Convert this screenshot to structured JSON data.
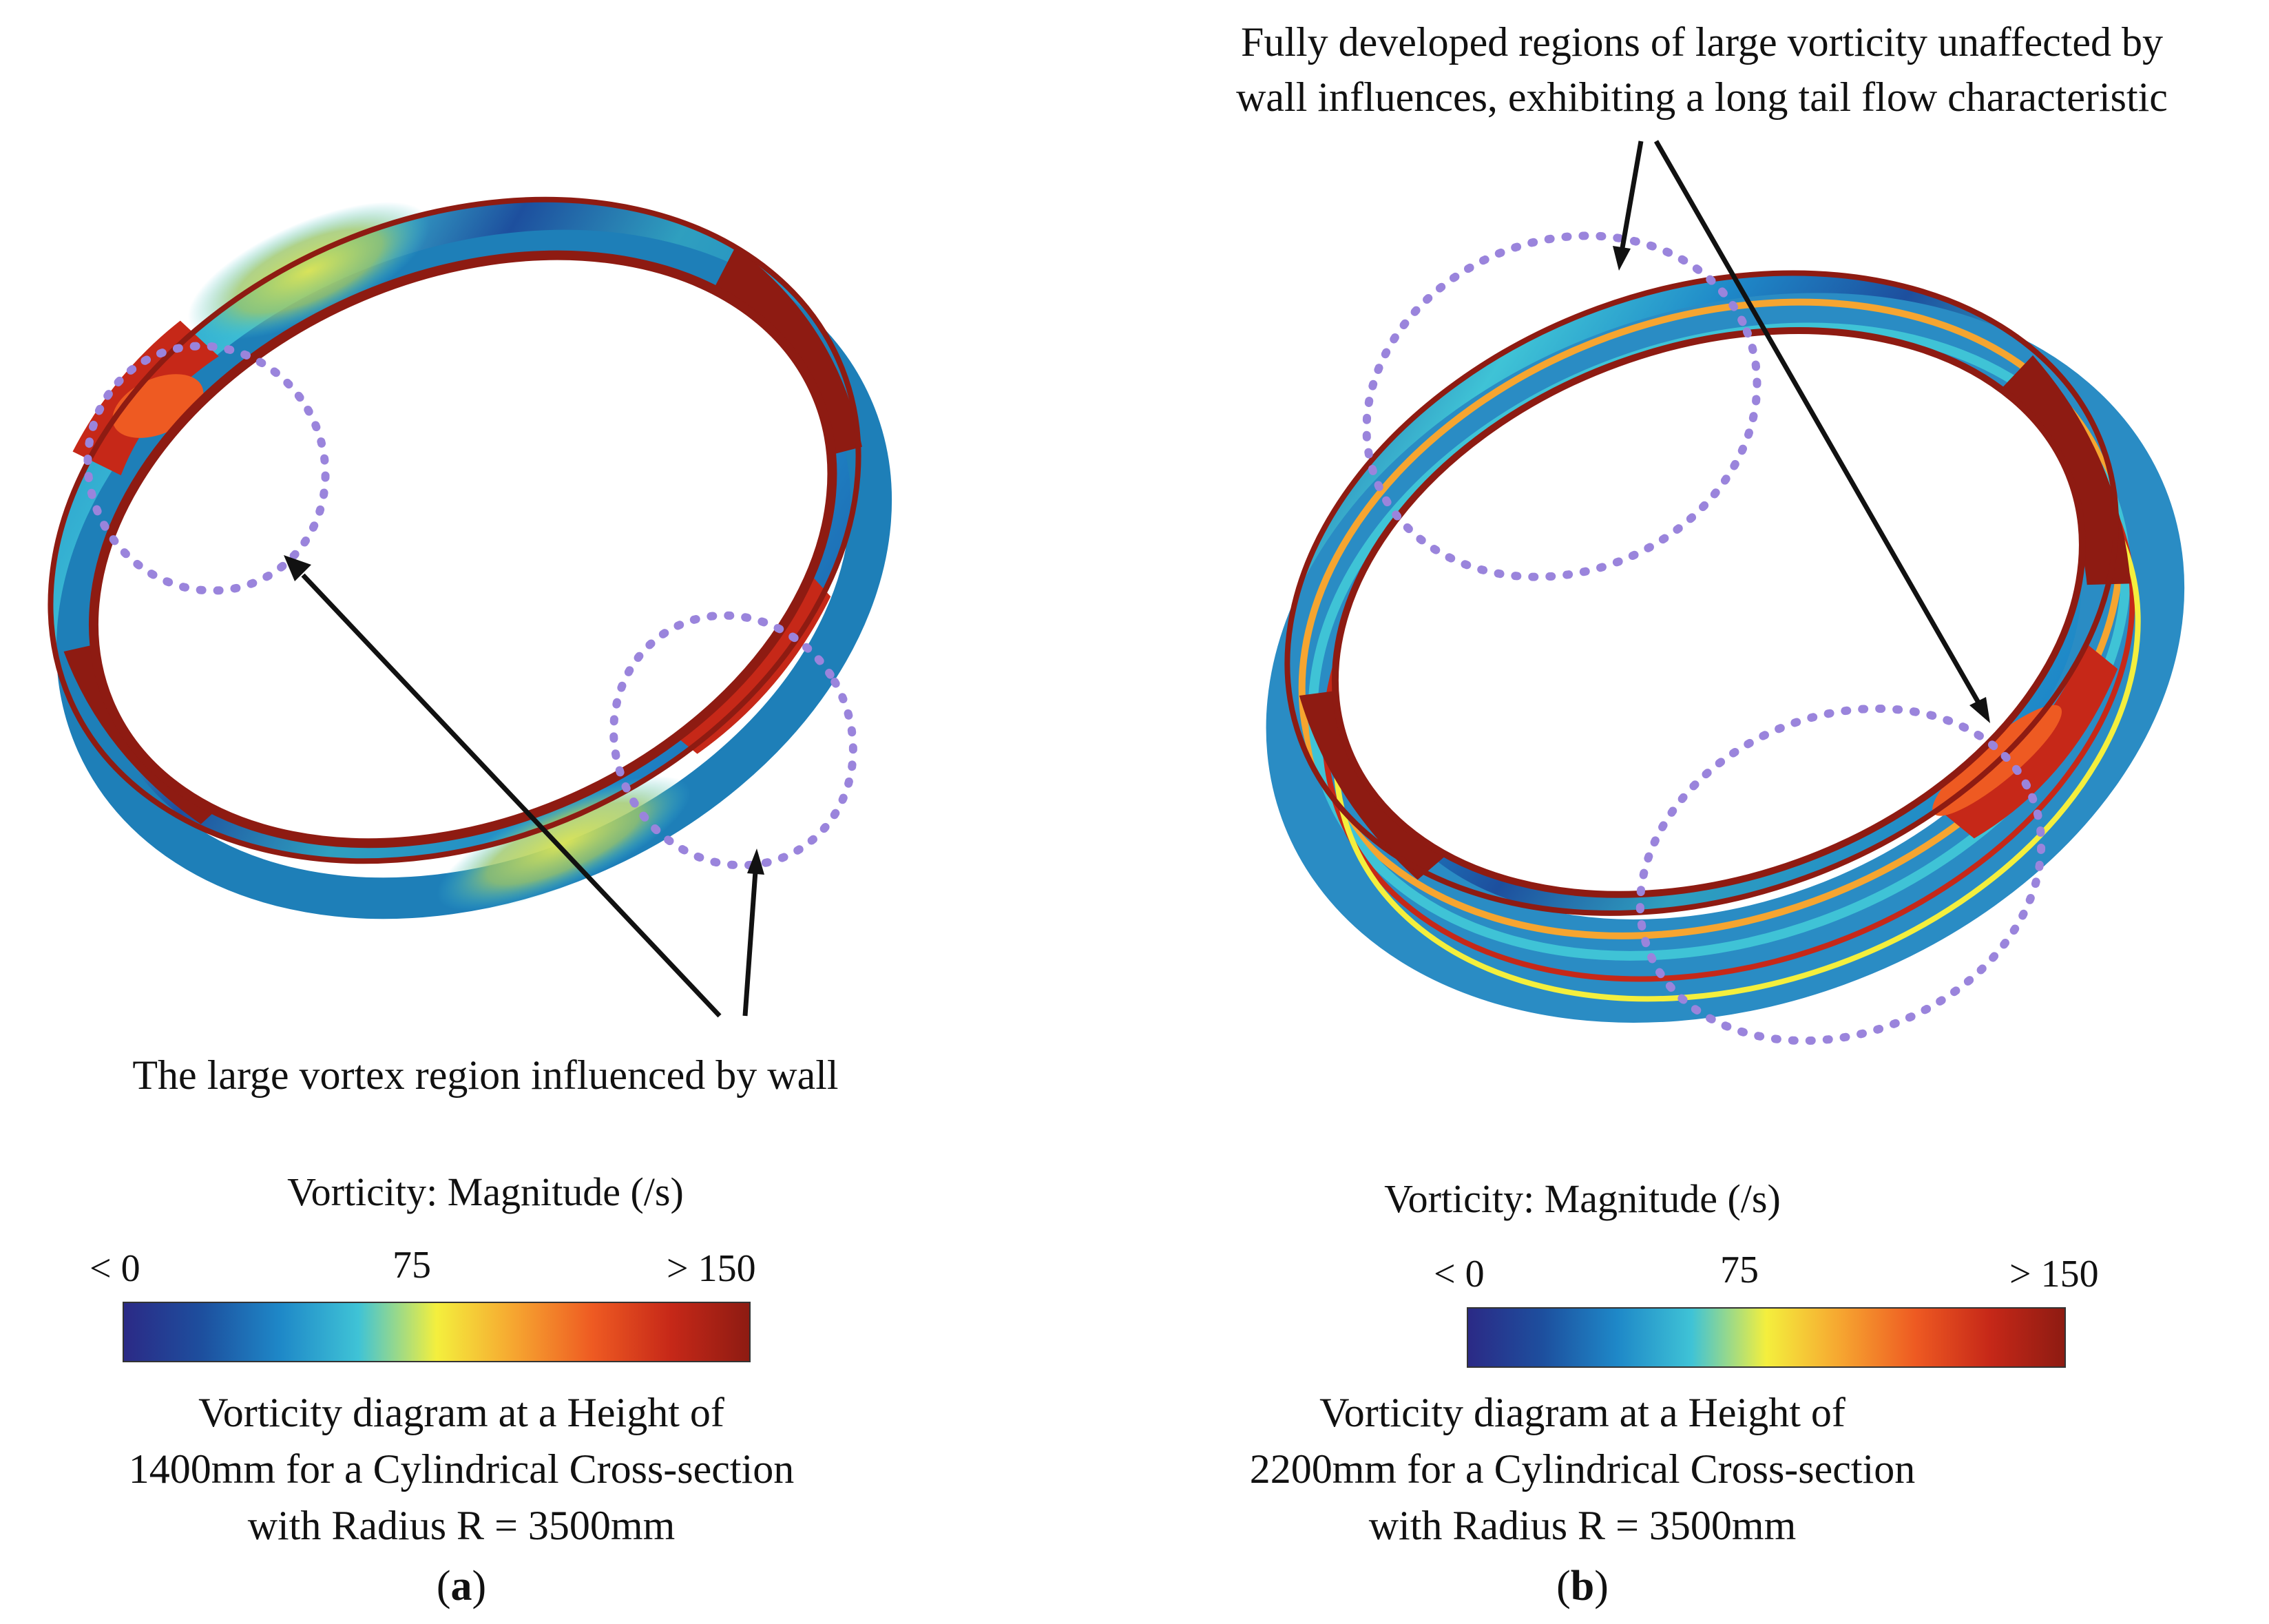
{
  "colors": {
    "annotation_circle": "#9a84dc",
    "arrow": "#111111",
    "colormap": [
      "#2b2a86",
      "#1d4f9e",
      "#1e88c8",
      "#3fc3d6",
      "#f4ef3d",
      "#f6a530",
      "#ee5a22",
      "#c62818",
      "#8e1b12"
    ]
  },
  "panels": [
    {
      "id": "a",
      "annotation": "The large vortex region influenced by wall",
      "colorbar": {
        "title": "Vorticity: Magnitude (/s)",
        "min_label": "< 0",
        "mid_label": "75",
        "max_label": "> 150",
        "min": 0,
        "mid": 75,
        "max": 150
      },
      "caption": [
        "Vorticity diagram at a Height of",
        "1400mm for a Cylindrical Cross-section",
        "with Radius R = 3500mm"
      ],
      "label_letter": "a",
      "height_mm": 1400,
      "radius_mm": 3500
    },
    {
      "id": "b",
      "annotation": [
        "Fully developed regions of large vorticity unaffected by",
        "wall influences, exhibiting a long tail flow characteristic"
      ],
      "colorbar": {
        "title": "Vorticity: Magnitude (/s)",
        "min_label": "< 0",
        "mid_label": "75",
        "max_label": "> 150",
        "min": 0,
        "mid": 75,
        "max": 150
      },
      "caption": [
        "Vorticity diagram at a Height of",
        "2200mm for a Cylindrical Cross-section",
        "with Radius R = 3500mm"
      ],
      "label_letter": "b",
      "height_mm": 2200,
      "radius_mm": 3500
    }
  ]
}
